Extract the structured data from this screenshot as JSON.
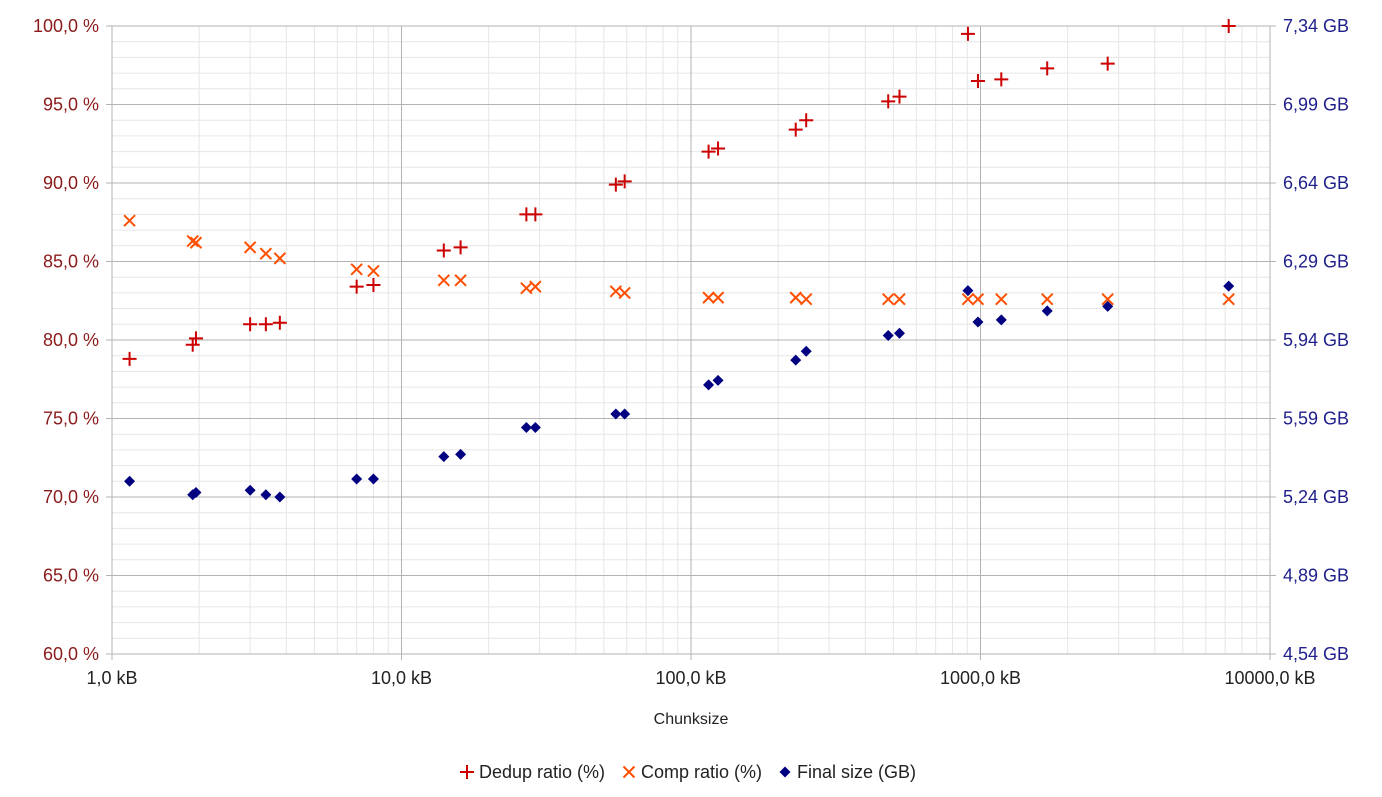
{
  "chart_data": {
    "type": "scatter",
    "x_scale": "log",
    "xlim": [
      1,
      10000
    ],
    "xlabel": "Chunksize",
    "x_ticks": [
      1,
      10,
      100,
      1000,
      10000
    ],
    "x_tick_labels": [
      "1,0 kB",
      "10,0 kB",
      "100,0 kB",
      "1000,0 kB",
      "10000,0 kB"
    ],
    "y_left": {
      "range": [
        60,
        100
      ],
      "ticks": [
        60,
        65,
        70,
        75,
        80,
        85,
        90,
        95,
        100
      ],
      "tick_labels": [
        "60,0 %",
        "65,0 %",
        "70,0 %",
        "75,0 %",
        "80,0 %",
        "85,0 %",
        "90,0 %",
        "95,0 %",
        "100,0 %"
      ],
      "color": "#8b1a1a"
    },
    "y_right": {
      "range": [
        4.54,
        7.34
      ],
      "ticks": [
        4.54,
        4.89,
        5.24,
        5.59,
        5.94,
        6.29,
        6.64,
        6.99,
        7.34
      ],
      "tick_labels": [
        "4,54 GB",
        "4,89 GB",
        "5,24 GB",
        "5,59 GB",
        "5,94 GB",
        "6,29 GB",
        "6,64 GB",
        "6,99 GB",
        "7,34 GB"
      ],
      "color": "#1f1f8b"
    },
    "grid": true,
    "legend_position": "bottom",
    "series": [
      {
        "name": "Dedup ratio (%)",
        "axis": "left",
        "marker": "plus",
        "color": "#cc0000",
        "points": [
          [
            1.15,
            78.8
          ],
          [
            1.9,
            79.7
          ],
          [
            1.95,
            80.1
          ],
          [
            3.0,
            81.0
          ],
          [
            3.4,
            81.0
          ],
          [
            3.8,
            81.1
          ],
          [
            7.0,
            83.4
          ],
          [
            8.0,
            83.5
          ],
          [
            14,
            85.7
          ],
          [
            16,
            85.9
          ],
          [
            27,
            88.0
          ],
          [
            29,
            88.0
          ],
          [
            55,
            89.9
          ],
          [
            59,
            90.1
          ],
          [
            115,
            92.0
          ],
          [
            124,
            92.2
          ],
          [
            230,
            93.4
          ],
          [
            250,
            94.0
          ],
          [
            480,
            95.2
          ],
          [
            525,
            95.5
          ],
          [
            905,
            99.5
          ],
          [
            980,
            96.5
          ],
          [
            1180,
            96.6
          ],
          [
            1700,
            97.3
          ],
          [
            2750,
            97.6
          ],
          [
            7200,
            100.0
          ]
        ]
      },
      {
        "name": "Comp ratio (%)",
        "axis": "left",
        "marker": "x",
        "color": "#ff4f00",
        "points": [
          [
            1.15,
            87.6
          ],
          [
            1.9,
            86.3
          ],
          [
            1.95,
            86.2
          ],
          [
            3.0,
            85.9
          ],
          [
            3.4,
            85.5
          ],
          [
            3.8,
            85.2
          ],
          [
            7.0,
            84.5
          ],
          [
            8.0,
            84.4
          ],
          [
            14,
            83.8
          ],
          [
            16,
            83.8
          ],
          [
            27,
            83.3
          ],
          [
            29,
            83.4
          ],
          [
            55,
            83.1
          ],
          [
            59,
            83.0
          ],
          [
            115,
            82.7
          ],
          [
            124,
            82.7
          ],
          [
            230,
            82.7
          ],
          [
            250,
            82.6
          ],
          [
            480,
            82.6
          ],
          [
            525,
            82.6
          ],
          [
            905,
            82.6
          ],
          [
            980,
            82.6
          ],
          [
            1180,
            82.6
          ],
          [
            1700,
            82.6
          ],
          [
            2750,
            82.6
          ],
          [
            7200,
            82.6
          ]
        ]
      },
      {
        "name": "Final size (GB)",
        "axis": "right",
        "marker": "diamond",
        "color": "#000080",
        "points": [
          [
            1.15,
            5.31
          ],
          [
            1.9,
            5.25
          ],
          [
            1.95,
            5.26
          ],
          [
            3.0,
            5.27
          ],
          [
            3.4,
            5.25
          ],
          [
            3.8,
            5.24
          ],
          [
            7.0,
            5.32
          ],
          [
            8.0,
            5.32
          ],
          [
            14,
            5.42
          ],
          [
            16,
            5.43
          ],
          [
            27,
            5.55
          ],
          [
            29,
            5.55
          ],
          [
            55,
            5.61
          ],
          [
            59,
            5.61
          ],
          [
            115,
            5.74
          ],
          [
            124,
            5.76
          ],
          [
            230,
            5.85
          ],
          [
            250,
            5.89
          ],
          [
            480,
            5.96
          ],
          [
            525,
            5.97
          ],
          [
            905,
            6.16
          ],
          [
            980,
            6.02
          ],
          [
            1180,
            6.03
          ],
          [
            1700,
            6.07
          ],
          [
            2750,
            6.09
          ],
          [
            7200,
            6.18
          ]
        ]
      }
    ]
  }
}
